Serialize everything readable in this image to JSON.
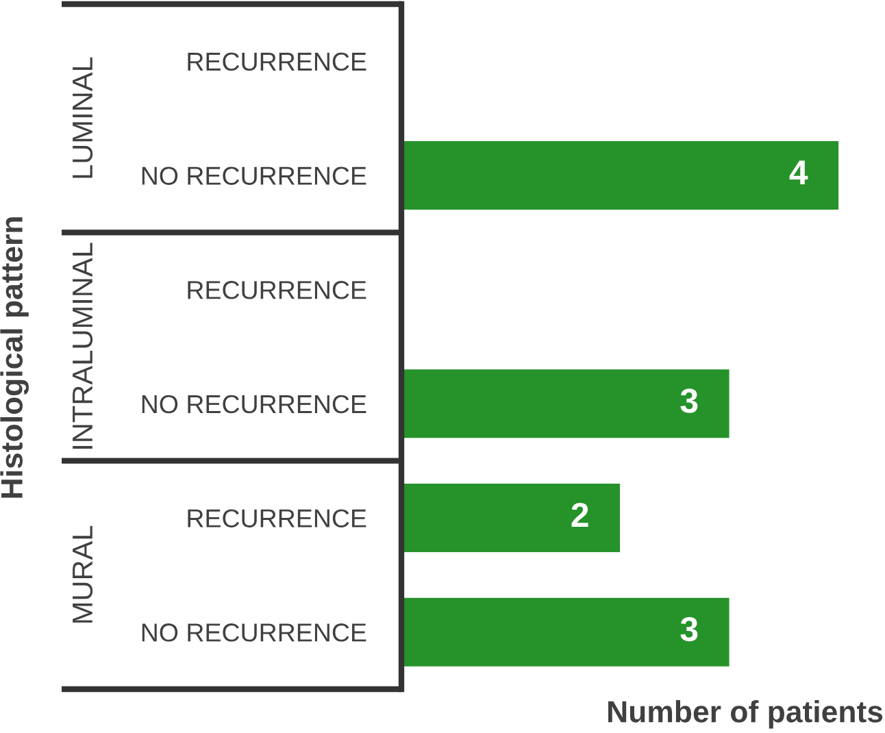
{
  "chart_data": {
    "type": "bar",
    "orientation": "horizontal",
    "categories": [
      "RECURRENCE",
      "NO RECURRENCE",
      "RECURRENCE",
      "NO RECURRENCE",
      "RECURRENCE",
      "NO RECURRENCE"
    ],
    "values": [
      null,
      4,
      null,
      3,
      2,
      3
    ],
    "color": "#26922a",
    "tick_labels": "y",
    "xlabel": "Number of patients",
    "ylabel": "Histological pattern",
    "annotations": [
      "LUMINAL",
      "INTRALUMINAL",
      "MURAL"
    ],
    "data_labels": true
  }
}
